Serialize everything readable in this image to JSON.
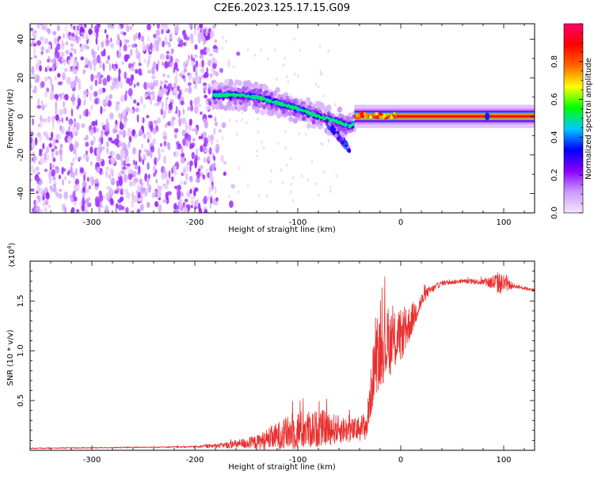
{
  "figure": {
    "title": "C2E6.2023.125.17.15.G09"
  },
  "chart_data": [
    {
      "type": "heatmap",
      "title": "C2E6.2023.125.17.15.G09",
      "xlabel": "Height of straight line (km)",
      "ylabel": "Frequency (Hz)",
      "xlim": [
        -360,
        130
      ],
      "ylim": [
        -50,
        48
      ],
      "xticks": [
        -300,
        -200,
        -100,
        0,
        100
      ],
      "yticks": [
        -40,
        -20,
        0,
        20,
        40
      ],
      "colorbar": {
        "label": "Normalized spectral amplitude",
        "range": [
          0,
          1
        ],
        "ticks": [
          0.0,
          0.2,
          0.4,
          0.6,
          0.8
        ],
        "colormap": "rainbow",
        "colors": [
          "#f4e6fa",
          "#cc99ff",
          "#8800ff",
          "#0000ff",
          "#00c8ff",
          "#00ff00",
          "#ffff00",
          "#ff6600",
          "#ff0000",
          "#ff0066"
        ]
      },
      "features": {
        "noise_region": {
          "x_range": [
            -360,
            -178
          ],
          "y_range": [
            -50,
            48
          ],
          "amplitude": 0.15
        },
        "descending_trace": {
          "x": [
            -182,
            -160,
            -140,
            -120,
            -100,
            -80,
            -60,
            -50,
            -45
          ],
          "y": [
            11,
            11,
            10,
            7,
            4,
            0,
            -3,
            -5,
            -4
          ]
        },
        "tail_trace": {
          "x_range": [
            -72,
            -50
          ],
          "y_range": [
            -3,
            -17
          ]
        },
        "flat_trace": {
          "x_range": [
            -45,
            130
          ],
          "y": 0,
          "amplitude": 0.9
        }
      }
    },
    {
      "type": "line",
      "xlabel": "Height of straight line (km)",
      "ylabel": "SNR (10 * v/v)",
      "multiplier_label": "(x10",
      "multiplier_exponent": "4",
      "multiplier_close": ")",
      "xlim": [
        -360,
        130
      ],
      "ylim": [
        0,
        1.9
      ],
      "xticks": [
        -300,
        -200,
        -100,
        0,
        100
      ],
      "yticks": [
        0.5,
        1.0,
        1.5
      ],
      "ytick_labels": [
        "0.5",
        "1.0",
        "1.5"
      ],
      "color": "#e8302f",
      "series_profile": {
        "x": [
          -360,
          -250,
          -200,
          -170,
          -140,
          -120,
          -100,
          -75,
          -60,
          -45,
          -33,
          -25,
          -15,
          -5,
          5,
          15,
          25,
          40,
          60,
          80,
          95,
          110,
          130
        ],
        "base": [
          0.02,
          0.03,
          0.035,
          0.05,
          0.08,
          0.14,
          0.2,
          0.22,
          0.21,
          0.2,
          0.25,
          0.9,
          1.05,
          1.1,
          1.2,
          1.4,
          1.58,
          1.68,
          1.7,
          1.69,
          1.68,
          1.65,
          1.61
        ],
        "noise": [
          0.004,
          0.005,
          0.008,
          0.03,
          0.07,
          0.14,
          0.2,
          0.18,
          0.14,
          0.12,
          0.15,
          0.35,
          0.35,
          0.3,
          0.22,
          0.12,
          0.05,
          0.025,
          0.02,
          0.03,
          0.12,
          0.02,
          0.015
        ]
      }
    }
  ]
}
